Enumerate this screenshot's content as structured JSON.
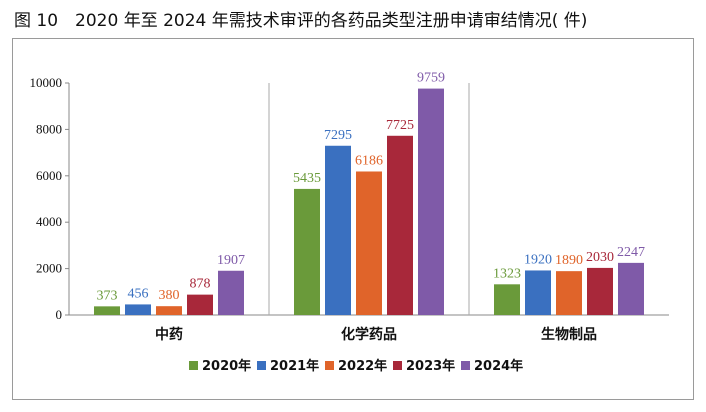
{
  "figure_caption": "图 10　2020 年至 2024 年需技术审评的各药品类型注册申请审结情况( 件)",
  "chart_data": {
    "type": "bar",
    "categories": [
      "中药",
      "化学药品",
      "生物制品"
    ],
    "series": [
      {
        "name": "2020年",
        "values": [
          373,
          5435,
          1323
        ],
        "color": "#6a9a3a"
      },
      {
        "name": "2021年",
        "values": [
          456,
          7295,
          1920
        ],
        "color": "#3a70c0"
      },
      {
        "name": "2022年",
        "values": [
          380,
          6186,
          1890
        ],
        "color": "#e0642a"
      },
      {
        "name": "2023年",
        "values": [
          878,
          7725,
          2030
        ],
        "color": "#a8283a"
      },
      {
        "name": "2024年",
        "values": [
          1907,
          9759,
          2247
        ],
        "color": "#7f5aa8"
      }
    ],
    "yticks": [
      "0",
      "2000",
      "4000",
      "6000",
      "8000",
      "10000"
    ],
    "ylim": [
      0,
      10000
    ],
    "grid": false,
    "legend_position": "bottom",
    "xlabel": "",
    "ylabel": ""
  }
}
